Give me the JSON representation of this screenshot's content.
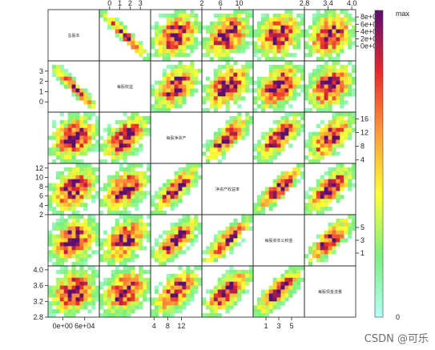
{
  "chart_data": {
    "type": "heatmap",
    "subtype": "hexbin scatterplot matrix",
    "variables": [
      {
        "key": "v0",
        "label": "总股本",
        "range": [
          -40000,
          100000
        ]
      },
      {
        "key": "v1",
        "label": "每股收益",
        "range": [
          -1,
          4
        ]
      },
      {
        "key": "v2",
        "label": "每股净资产",
        "range": [
          3,
          18
        ]
      },
      {
        "key": "v3",
        "label": "净资产收益率",
        "range": [
          2,
          13
        ]
      },
      {
        "key": "v4",
        "label": "每股资本公积金",
        "range": [
          -1,
          7
        ]
      },
      {
        "key": "v5",
        "label": "每股现金流量",
        "range": [
          2.8,
          4.1
        ]
      }
    ],
    "axes": [
      {
        "var": 0,
        "side": "bottom",
        "ticks": [
          "0e+00",
          "6e+04"
        ],
        "values": [
          0,
          60000
        ]
      },
      {
        "var": 1,
        "side": "top",
        "ticks": [
          "0",
          "1",
          "2",
          "3"
        ],
        "values": [
          0,
          1,
          2,
          3
        ]
      },
      {
        "var": 2,
        "side": "bottom",
        "ticks": [
          "4",
          "8",
          "12"
        ],
        "values": [
          4,
          8,
          12
        ]
      },
      {
        "var": 3,
        "side": "top",
        "ticks": [
          "2",
          "6",
          "10"
        ],
        "values": [
          2,
          6,
          10
        ]
      },
      {
        "var": 4,
        "side": "bottom",
        "ticks": [
          "1",
          "3",
          "5"
        ],
        "values": [
          1,
          3,
          5
        ]
      },
      {
        "var": 5,
        "side": "top",
        "ticks": [
          "2.8",
          "3.4",
          "4.0"
        ],
        "values": [
          2.8,
          3.4,
          4.0
        ]
      },
      {
        "var": 0,
        "side": "right",
        "ticks": [
          "0e+00",
          "2e+04",
          "4e+04",
          "6e+04",
          "8e+04"
        ],
        "values": [
          0,
          20000,
          40000,
          60000,
          80000
        ]
      },
      {
        "var": 1,
        "side": "left",
        "ticks": [
          "0",
          "1",
          "2",
          "3"
        ],
        "values": [
          0,
          1,
          2,
          3
        ]
      },
      {
        "var": 2,
        "side": "right",
        "ticks": [
          "4",
          "8",
          "12",
          "16"
        ],
        "values": [
          4,
          8,
          12,
          16
        ]
      },
      {
        "var": 3,
        "side": "left",
        "ticks": [
          "2",
          "4",
          "6",
          "8",
          "10",
          "12"
        ],
        "values": [
          2,
          4,
          6,
          8,
          10,
          12
        ]
      },
      {
        "var": 4,
        "side": "right",
        "ticks": [
          "1",
          "3",
          "5"
        ],
        "values": [
          1,
          3,
          5
        ]
      },
      {
        "var": 5,
        "side": "left",
        "ticks": [
          "2.8",
          "3.2",
          "3.6",
          "4.0"
        ],
        "values": [
          2.8,
          3.2,
          3.6,
          4.0
        ]
      }
    ],
    "correlations": [
      [
        1,
        -0.95,
        0.3,
        0.35,
        0.25,
        0.25
      ],
      [
        -0.95,
        1,
        0.55,
        0.45,
        0.45,
        0.35
      ],
      [
        0.3,
        0.55,
        1,
        0.8,
        0.75,
        0.65
      ],
      [
        0.35,
        0.45,
        0.8,
        1,
        0.85,
        0.7
      ],
      [
        0.25,
        0.45,
        0.75,
        0.85,
        1,
        0.8
      ],
      [
        0.25,
        0.35,
        0.65,
        0.7,
        0.8,
        1
      ]
    ],
    "legend": {
      "max_label": "max",
      "min_label": "0",
      "position": "right"
    },
    "color_scale": [
      "#b3fff9",
      "#7cf07f",
      "#ffff33",
      "#ff9a3a",
      "#e8282a",
      "#5a0f73"
    ]
  },
  "watermark": "CSDN @可乐"
}
